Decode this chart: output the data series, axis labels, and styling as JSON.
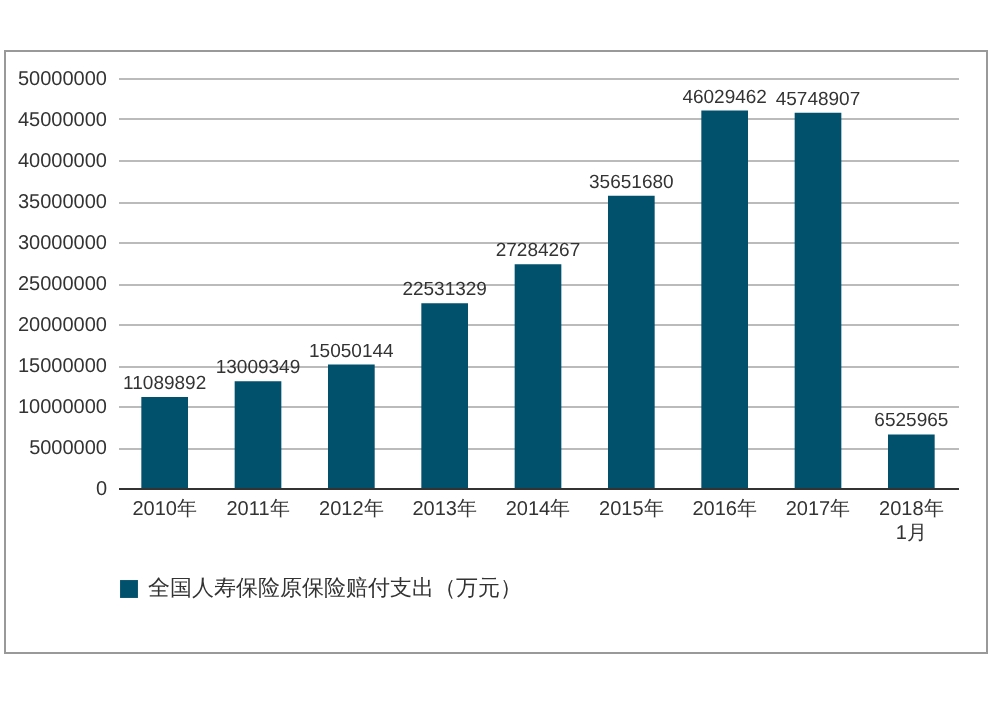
{
  "chart_data": {
    "type": "bar",
    "categories": [
      "2010年",
      "2011年",
      "2012年",
      "2013年",
      "2014年",
      "2015年",
      "2016年",
      "2017年",
      "2018年1月"
    ],
    "series": [
      {
        "name": "全国人寿保险原保险赔付支出（万元）",
        "color": "#01506c",
        "values": [
          11089892,
          13009349,
          15050144,
          22531329,
          27284267,
          35651680,
          46029462,
          45748907,
          6525965
        ]
      }
    ],
    "ylim": [
      0,
      50000000
    ],
    "yticks": [
      0,
      5000000,
      10000000,
      15000000,
      20000000,
      25000000,
      30000000,
      35000000,
      40000000,
      45000000,
      50000000
    ],
    "grid": "y",
    "legend": "bottom",
    "data_labels": true
  }
}
